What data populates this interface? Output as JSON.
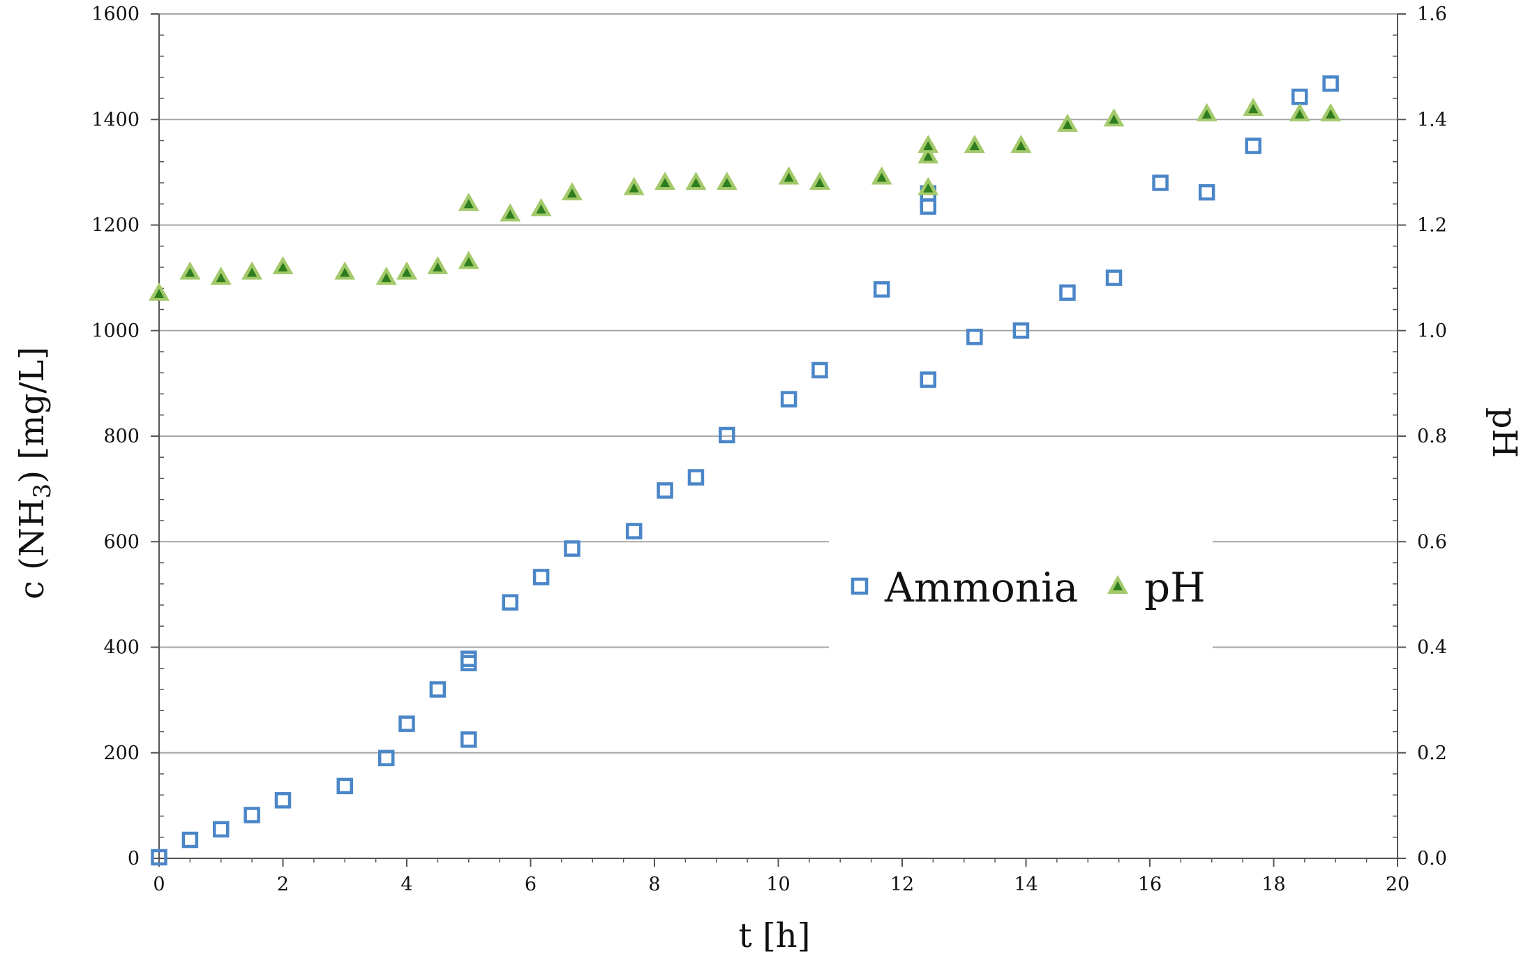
{
  "chart_data": {
    "type": "scatter",
    "title": "",
    "xlabel": "t [h]",
    "ylabel_left": {
      "prefix": "c (NH",
      "sub": "3",
      "suffix": ") [mg/L]"
    },
    "ylabel_right": "pH",
    "xlim": [
      0,
      20
    ],
    "ylim_left": [
      0,
      1600
    ],
    "ylim_right": [
      0.0,
      1.6
    ],
    "x_ticks": [
      0,
      2,
      4,
      6,
      8,
      10,
      12,
      14,
      16,
      18,
      20
    ],
    "y_ticks_left": [
      0,
      200,
      400,
      600,
      800,
      1000,
      1200,
      1400,
      1600
    ],
    "y_ticks_right": [
      "0.0",
      "0.2",
      "0.4",
      "0.6",
      "0.8",
      "1.0",
      "1.2",
      "1.4",
      "1.6"
    ],
    "grid": true,
    "legend_position": "center-right",
    "series": [
      {
        "name": "Ammonia",
        "axis": "left",
        "marker": "open-square",
        "color": "#4a86c8",
        "points": [
          [
            0,
            2
          ],
          [
            0.5,
            35
          ],
          [
            1,
            55
          ],
          [
            1.5,
            82
          ],
          [
            2,
            110
          ],
          [
            3,
            137
          ],
          [
            3.67,
            190
          ],
          [
            4,
            255
          ],
          [
            4.5,
            320
          ],
          [
            5,
            225
          ],
          [
            5,
            370
          ],
          [
            5,
            378
          ],
          [
            5.67,
            485
          ],
          [
            6.17,
            533
          ],
          [
            6.67,
            587
          ],
          [
            7.67,
            620
          ],
          [
            8.17,
            697
          ],
          [
            8.67,
            722
          ],
          [
            9.17,
            802
          ],
          [
            10.17,
            870
          ],
          [
            10.67,
            925
          ],
          [
            11.67,
            1078
          ],
          [
            12.42,
            907
          ],
          [
            12.42,
            1235
          ],
          [
            12.42,
            1260
          ],
          [
            13.17,
            988
          ],
          [
            13.92,
            1000
          ],
          [
            14.67,
            1072
          ],
          [
            15.42,
            1100
          ],
          [
            16.17,
            1280
          ],
          [
            16.92,
            1262
          ],
          [
            17.67,
            1350
          ],
          [
            18.42,
            1443
          ],
          [
            18.92,
            1468
          ]
        ]
      },
      {
        "name": "pH",
        "axis": "right",
        "marker": "triangle",
        "color": "#a3c96a",
        "inner_color": "#2e7d1e",
        "points": [
          [
            0,
            1.07
          ],
          [
            0.5,
            1.11
          ],
          [
            1,
            1.1
          ],
          [
            1.5,
            1.11
          ],
          [
            2,
            1.12
          ],
          [
            3,
            1.11
          ],
          [
            3.67,
            1.1
          ],
          [
            4,
            1.11
          ],
          [
            4.5,
            1.12
          ],
          [
            5,
            1.13
          ],
          [
            5,
            1.24
          ],
          [
            5.67,
            1.22
          ],
          [
            6.17,
            1.23
          ],
          [
            6.67,
            1.26
          ],
          [
            7.67,
            1.27
          ],
          [
            8.17,
            1.28
          ],
          [
            8.67,
            1.28
          ],
          [
            9.17,
            1.28
          ],
          [
            10.17,
            1.29
          ],
          [
            10.67,
            1.28
          ],
          [
            11.67,
            1.29
          ],
          [
            12.42,
            1.27
          ],
          [
            12.42,
            1.33
          ],
          [
            12.42,
            1.35
          ],
          [
            13.17,
            1.35
          ],
          [
            13.92,
            1.35
          ],
          [
            14.67,
            1.39
          ],
          [
            15.42,
            1.4
          ],
          [
            16.92,
            1.41
          ],
          [
            17.67,
            1.42
          ],
          [
            18.42,
            1.41
          ],
          [
            18.92,
            1.41
          ]
        ]
      }
    ]
  },
  "legend": {
    "ammonia_label": "Ammonia",
    "ph_label": "pH"
  }
}
